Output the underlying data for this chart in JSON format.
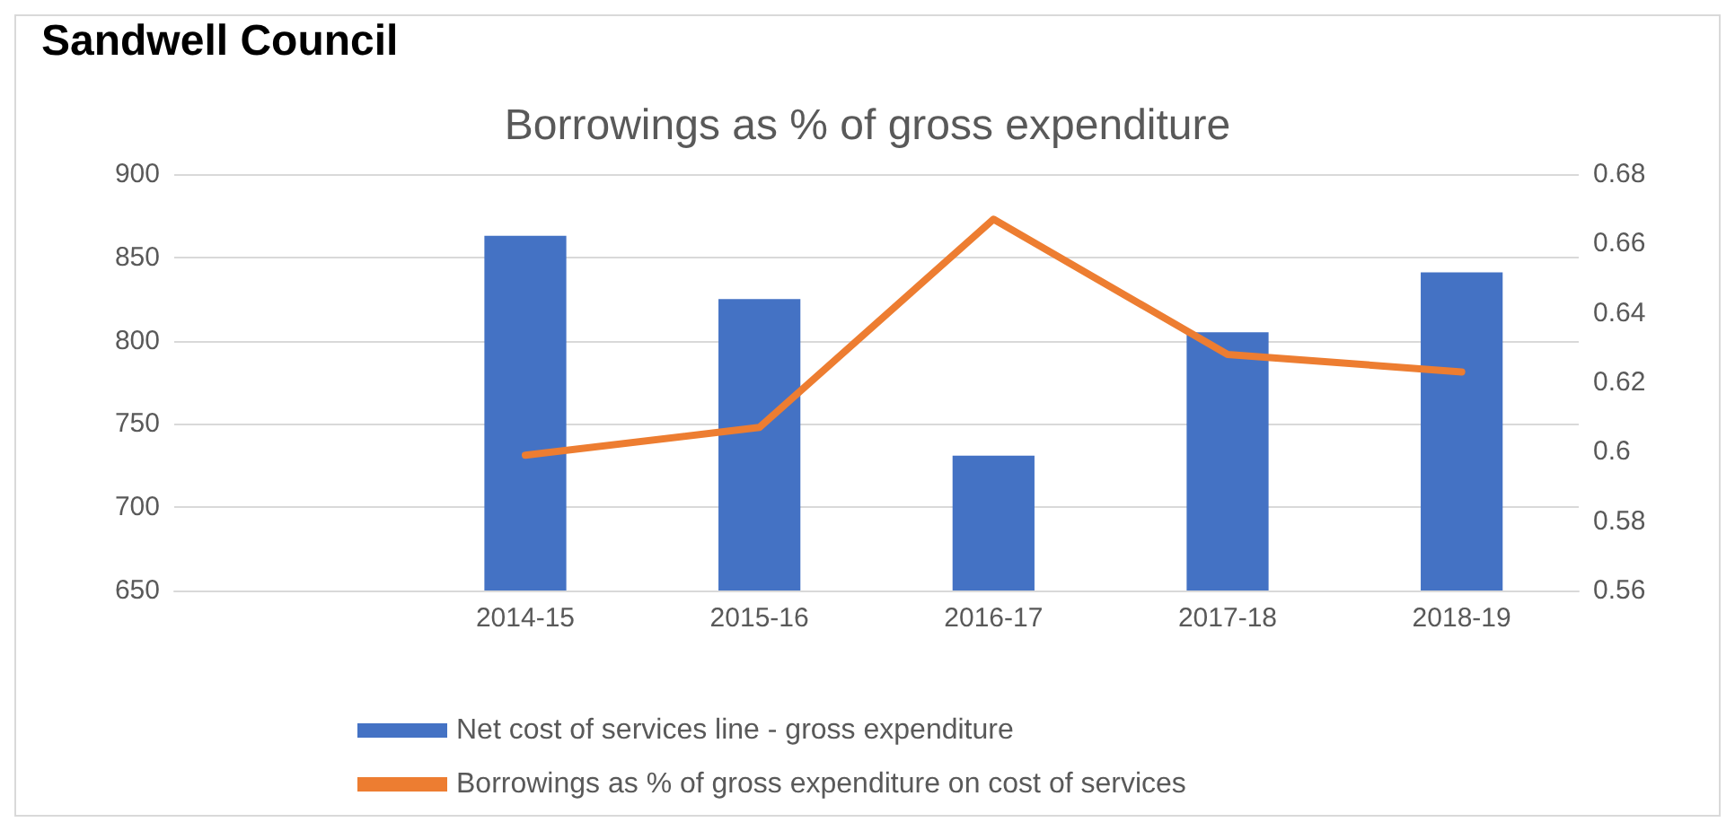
{
  "chart_data": {
    "type": "bar",
    "title": "Borrowings as % of gross expenditure",
    "annotations": [
      "Sandwell Council"
    ],
    "categories": [
      null,
      "2014-15",
      "2015-16",
      "2016-17",
      "2017-18",
      "2018-19"
    ],
    "series": [
      {
        "name": "Net cost of services line - gross expenditure",
        "color": "#4472c4",
        "values": [
          null,
          863,
          825,
          731,
          805,
          841
        ]
      },
      {
        "name": "Borrowings as % of gross expenditure on cost of services",
        "type": "line",
        "axis": "y2",
        "color": "#ed7d31",
        "values": [
          null,
          0.599,
          0.607,
          0.667,
          0.628,
          0.623
        ]
      }
    ],
    "ylim": [
      650,
      900
    ],
    "yticks": [
      650,
      700,
      750,
      800,
      850,
      900
    ],
    "y2lim": [
      0.56,
      0.68
    ],
    "y2ticks": [
      0.56,
      0.58,
      0.6,
      0.62,
      0.64,
      0.66,
      0.68
    ],
    "grid": "y",
    "legend": "bottom",
    "marker": "none",
    "line_style": "solid"
  }
}
